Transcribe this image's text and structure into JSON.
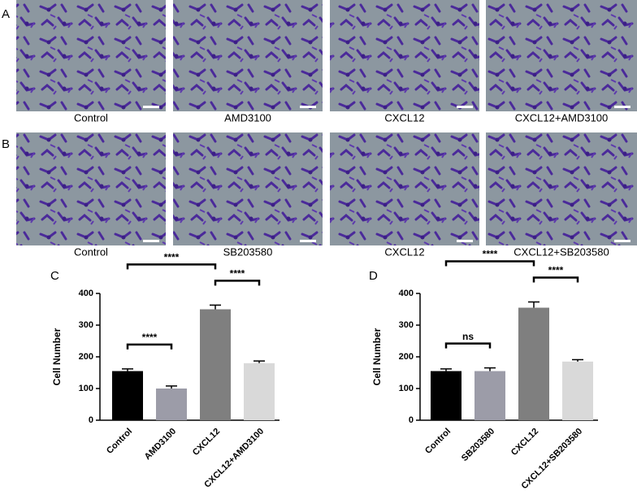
{
  "panels": [
    {
      "letter": "A",
      "images": [
        "Control",
        "AMD3100",
        "CXCL12",
        "CXCL12+AMD3100"
      ]
    },
    {
      "letter": "B",
      "images": [
        "Control",
        "SB203580",
        "CXCL12",
        "CXCL12+SB203580"
      ]
    }
  ],
  "chart_data": [
    {
      "type": "bar",
      "panel": "C",
      "y_label": "Cell Number",
      "categories": [
        "Control",
        "AMD3100",
        "CXCL12",
        "CXCL12+AMD3100"
      ],
      "values": [
        155,
        100,
        350,
        180
      ],
      "errors": [
        7,
        8,
        13,
        7
      ],
      "colors": [
        "#000000",
        "#9c9ca8",
        "#7f7f7f",
        "#d9d9d9"
      ],
      "ylim": [
        0,
        400
      ],
      "yticks": [
        0,
        100,
        200,
        300,
        400
      ],
      "comparisons": [
        {
          "pair": [
            "Control",
            "AMD3100"
          ],
          "label": "****"
        },
        {
          "pair": [
            "CXCL12",
            "CXCL12+AMD3100"
          ],
          "label": "****"
        },
        {
          "pair": [
            "Control",
            "CXCL12"
          ],
          "label": "****"
        }
      ]
    },
    {
      "type": "bar",
      "panel": "D",
      "y_label": "Cell Number",
      "categories": [
        "Control",
        "SB203580",
        "CXCL12",
        "CXCL12+SB203580"
      ],
      "values": [
        155,
        155,
        355,
        185
      ],
      "errors": [
        7,
        10,
        18,
        6
      ],
      "colors": [
        "#000000",
        "#9c9ca8",
        "#7f7f7f",
        "#d9d9d9"
      ],
      "ylim": [
        0,
        400
      ],
      "yticks": [
        0,
        100,
        200,
        300,
        400
      ],
      "comparisons": [
        {
          "pair": [
            "Control",
            "SB203580"
          ],
          "label": "ns"
        },
        {
          "pair": [
            "CXCL12",
            "CXCL12+SB203580"
          ],
          "label": "****"
        },
        {
          "pair": [
            "Control",
            "CXCL12"
          ],
          "label": "****"
        }
      ]
    }
  ]
}
